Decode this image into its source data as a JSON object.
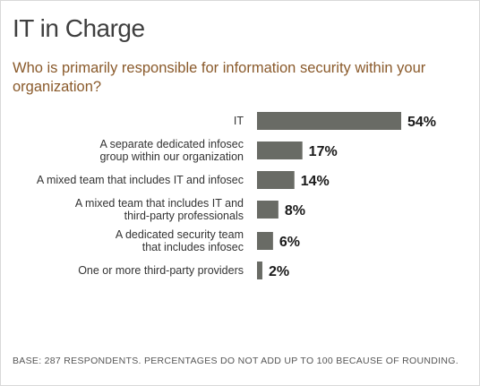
{
  "title": "IT in Charge",
  "subtitle": "Who is primarily responsible for information security within your organization?",
  "footnote": "BASE: 287 RESPONDENTS. PERCENTAGES DO NOT ADD UP TO 100 BECAUSE OF ROUNDING.",
  "colors": {
    "bar": "#696b65",
    "subtitle": "#8a5a2b",
    "title": "#3f3f3f"
  },
  "chart_data": {
    "type": "bar",
    "orientation": "horizontal",
    "title": "IT in Charge",
    "categories": [
      [
        "IT"
      ],
      [
        "A separate dedicated infosec",
        "group within our organization"
      ],
      [
        "A mixed team that includes IT and infosec"
      ],
      [
        "A mixed team that includes IT and",
        "third-party professionals"
      ],
      [
        "A dedicated security team",
        "that includes infosec"
      ],
      [
        "One or more third-party providers"
      ]
    ],
    "values": [
      54,
      17,
      14,
      8,
      6,
      2
    ],
    "value_labels": [
      "54%",
      "17%",
      "14%",
      "8%",
      "6%",
      "2%"
    ],
    "xlim": [
      0,
      54
    ],
    "grid": false,
    "legend": "none"
  }
}
